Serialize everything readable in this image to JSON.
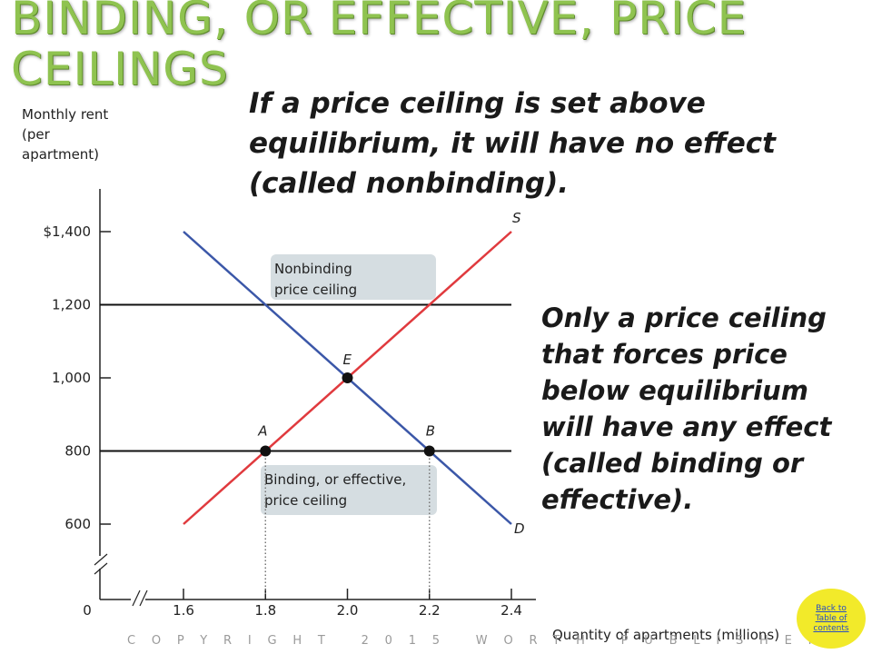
{
  "slide": {
    "title": "BINDING, OR EFFECTIVE, PRICE CEILINGS",
    "callout_top": "If a price ceiling is set above equilibrium, it will have no effect (called nonbinding).",
    "callout_right": "Only a price ceiling that forces price below equilibrium will have any effect (called binding or effective).",
    "copyright": "COPYRIGHT 2015 WORTH PUBLISHERS",
    "back_button": "Back to Table of contents",
    "colors": {
      "title": "#8fc350",
      "supply": "#e03a3e",
      "demand": "#3b57a8",
      "label_box": "#d5dde1",
      "button": "#f2ea2a"
    }
  },
  "chart_data": {
    "type": "line",
    "ylabel": "Monthly rent (per apartment)",
    "xlabel": "Quantity of apartments (millions)",
    "x_ticks": [
      1.6,
      1.8,
      2.0,
      2.2,
      2.4
    ],
    "x_tick_labels": [
      "1.6",
      "1.8",
      "2.0",
      "2.2",
      "2.4"
    ],
    "y_ticks": [
      600,
      800,
      1000,
      1200,
      1400
    ],
    "y_tick_labels": [
      "600",
      "800",
      "1,000",
      "1,200",
      "$1,400"
    ],
    "origin_label": "0",
    "xlim": [
      1.6,
      2.4
    ],
    "ylim": [
      600,
      1400
    ],
    "axis_breaks": true,
    "series": [
      {
        "name": "S",
        "color": "#e03a3e",
        "points": [
          [
            1.6,
            600
          ],
          [
            2.4,
            1400
          ]
        ]
      },
      {
        "name": "D",
        "color": "#3b57a8",
        "points": [
          [
            1.6,
            1400
          ],
          [
            2.4,
            600
          ]
        ]
      }
    ],
    "ceilings": [
      {
        "label_line1": "Nonbinding",
        "label_line2": " price ceiling",
        "price": 1200,
        "x_from": 1.6,
        "x_to": 2.4
      },
      {
        "label_line1": "Binding, or effective,",
        "label_line2": "price ceiling",
        "price": 800,
        "x_from": 1.6,
        "x_to": 2.4
      }
    ],
    "points": [
      {
        "label": "E",
        "x": 2.0,
        "y": 1000
      },
      {
        "label": "A",
        "x": 1.8,
        "y": 800
      },
      {
        "label": "B",
        "x": 2.2,
        "y": 800
      }
    ]
  }
}
